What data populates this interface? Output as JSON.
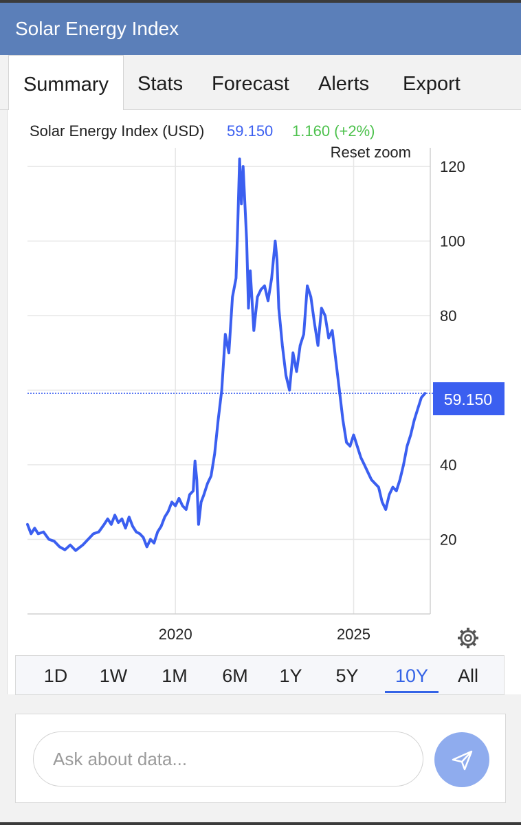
{
  "header": {
    "title": "Solar Energy Index"
  },
  "tabs": [
    {
      "label": "Summary",
      "active": true
    },
    {
      "label": "Stats"
    },
    {
      "label": "Forecast"
    },
    {
      "label": "Alerts"
    },
    {
      "label": "Export"
    }
  ],
  "chart_header": {
    "series_label": "Solar Energy Index (USD)",
    "last_value": "59.150",
    "change": "1.160 (+2%)",
    "value_color": "#3b5ff0",
    "change_color": "#4cc14c"
  },
  "reset_zoom": "Reset zoom",
  "price_tag": "59.150",
  "ranges": [
    {
      "label": "1D"
    },
    {
      "label": "1W"
    },
    {
      "label": "1M"
    },
    {
      "label": "6M"
    },
    {
      "label": "1Y"
    },
    {
      "label": "5Y"
    },
    {
      "label": "10Y",
      "active": true
    },
    {
      "label": "All"
    }
  ],
  "settings_icon": "gear-icon",
  "ask": {
    "placeholder": "Ask about data..."
  },
  "send_icon": "send-arrow-icon",
  "colors": {
    "appbar": "#5b7fb9",
    "line": "#3b5ff0",
    "active": "#3463e6",
    "send": "#8facee"
  },
  "chart_data": {
    "type": "line",
    "series": [
      {
        "name": "Solar Energy Index (USD)",
        "points": [
          [
            2015.85,
            24
          ],
          [
            2015.95,
            21.5
          ],
          [
            2016.05,
            23
          ],
          [
            2016.15,
            21.5
          ],
          [
            2016.3,
            22
          ],
          [
            2016.45,
            20
          ],
          [
            2016.6,
            19.5
          ],
          [
            2016.75,
            18
          ],
          [
            2016.9,
            17.2
          ],
          [
            2017.05,
            18.5
          ],
          [
            2017.2,
            17
          ],
          [
            2017.4,
            18.5
          ],
          [
            2017.55,
            20
          ],
          [
            2017.7,
            21.5
          ],
          [
            2017.85,
            22
          ],
          [
            2018.0,
            24
          ],
          [
            2018.1,
            25.5
          ],
          [
            2018.2,
            24
          ],
          [
            2018.3,
            26.5
          ],
          [
            2018.4,
            24.5
          ],
          [
            2018.5,
            25.5
          ],
          [
            2018.6,
            23
          ],
          [
            2018.7,
            26
          ],
          [
            2018.8,
            23.5
          ],
          [
            2018.9,
            22
          ],
          [
            2019.0,
            21.5
          ],
          [
            2019.1,
            20.5
          ],
          [
            2019.2,
            18
          ],
          [
            2019.3,
            20
          ],
          [
            2019.4,
            19
          ],
          [
            2019.5,
            22
          ],
          [
            2019.6,
            23.5
          ],
          [
            2019.7,
            26
          ],
          [
            2019.8,
            27.5
          ],
          [
            2019.9,
            30
          ],
          [
            2020.0,
            29
          ],
          [
            2020.1,
            31
          ],
          [
            2020.2,
            29
          ],
          [
            2020.3,
            28
          ],
          [
            2020.4,
            32
          ],
          [
            2020.5,
            33
          ],
          [
            2020.55,
            41
          ],
          [
            2020.6,
            36
          ],
          [
            2020.65,
            24
          ],
          [
            2020.72,
            30
          ],
          [
            2020.8,
            32
          ],
          [
            2020.9,
            35
          ],
          [
            2021.0,
            37
          ],
          [
            2021.1,
            43
          ],
          [
            2021.2,
            52
          ],
          [
            2021.3,
            60
          ],
          [
            2021.4,
            75
          ],
          [
            2021.5,
            70
          ],
          [
            2021.6,
            85
          ],
          [
            2021.7,
            90
          ],
          [
            2021.75,
            105
          ],
          [
            2021.8,
            122
          ],
          [
            2021.85,
            110
          ],
          [
            2021.9,
            120
          ],
          [
            2022.0,
            100
          ],
          [
            2022.05,
            82
          ],
          [
            2022.1,
            92
          ],
          [
            2022.2,
            76
          ],
          [
            2022.3,
            85
          ],
          [
            2022.4,
            87
          ],
          [
            2022.5,
            88
          ],
          [
            2022.6,
            84
          ],
          [
            2022.7,
            90
          ],
          [
            2022.8,
            100
          ],
          [
            2022.85,
            95
          ],
          [
            2022.9,
            82
          ],
          [
            2023.0,
            72
          ],
          [
            2023.1,
            64
          ],
          [
            2023.2,
            60
          ],
          [
            2023.3,
            70
          ],
          [
            2023.4,
            65
          ],
          [
            2023.5,
            72
          ],
          [
            2023.6,
            75
          ],
          [
            2023.7,
            88
          ],
          [
            2023.8,
            85
          ],
          [
            2023.9,
            78
          ],
          [
            2024.0,
            72
          ],
          [
            2024.1,
            82
          ],
          [
            2024.2,
            80
          ],
          [
            2024.3,
            74
          ],
          [
            2024.4,
            76
          ],
          [
            2024.5,
            68
          ],
          [
            2024.6,
            60
          ],
          [
            2024.7,
            52
          ],
          [
            2024.8,
            46
          ],
          [
            2024.9,
            45
          ],
          [
            2025.0,
            48
          ],
          [
            2025.1,
            45
          ],
          [
            2025.2,
            42
          ],
          [
            2025.3,
            40
          ],
          [
            2025.4,
            38
          ],
          [
            2025.5,
            36
          ],
          [
            2025.6,
            35
          ],
          [
            2025.7,
            34
          ],
          [
            2025.8,
            30
          ],
          [
            2025.9,
            28
          ],
          [
            2026.0,
            32
          ],
          [
            2026.1,
            34
          ],
          [
            2026.2,
            33
          ],
          [
            2026.3,
            36
          ],
          [
            2026.4,
            40
          ],
          [
            2026.5,
            45
          ],
          [
            2026.6,
            48
          ],
          [
            2026.7,
            52
          ],
          [
            2026.8,
            55
          ],
          [
            2026.9,
            58
          ],
          [
            2027.0,
            59.15
          ]
        ]
      }
    ],
    "x_ticks": [
      "2020",
      "2025"
    ],
    "y_ticks": [
      20,
      40,
      80,
      100,
      120
    ],
    "ylim": [
      0,
      125
    ],
    "last_value": 59.15,
    "grid": true,
    "y_axis_position": "right"
  }
}
